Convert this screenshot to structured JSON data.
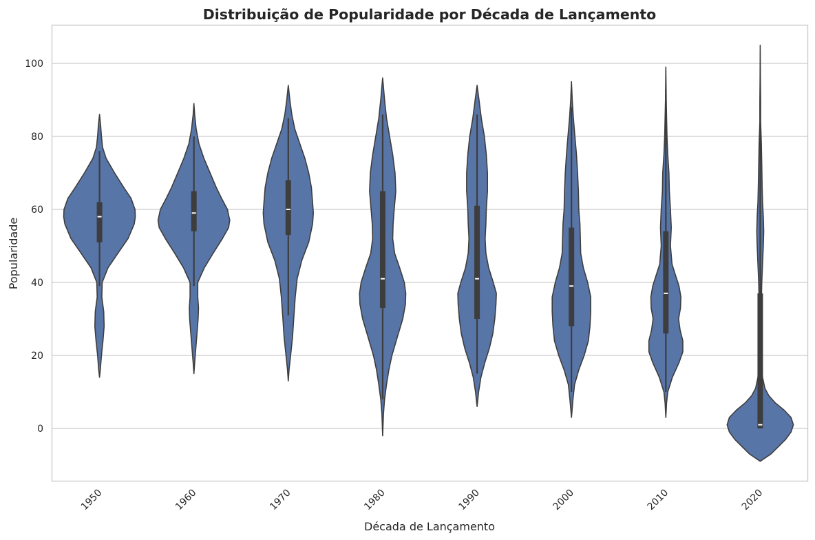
{
  "chart_data": {
    "type": "violin",
    "title": "Distribuição de Popularidade por Década de Lançamento",
    "xlabel": "Década de Lançamento",
    "ylabel": "Popularidade",
    "categories": [
      "1950",
      "1960",
      "1970",
      "1980",
      "1990",
      "2000",
      "2010",
      "2020"
    ],
    "y_ticks": [
      0,
      20,
      40,
      60,
      80,
      100
    ],
    "ylim": [
      -14.2,
      110.5
    ],
    "grid": "horizontal",
    "x_tick_rotation": 45,
    "color": "#5875a8",
    "edge_color": "#3d3d3d",
    "violins": [
      {
        "category": "1950",
        "min": 14,
        "max": 86,
        "whisker_low": 39,
        "whisker_high": 76,
        "q1": 51,
        "median": 58,
        "q3": 62,
        "profile": [
          [
            14,
            0.0
          ],
          [
            16,
            0.02
          ],
          [
            20,
            0.05
          ],
          [
            24,
            0.09
          ],
          [
            28,
            0.12
          ],
          [
            32,
            0.11
          ],
          [
            36,
            0.06
          ],
          [
            40,
            0.07
          ],
          [
            44,
            0.22
          ],
          [
            48,
            0.48
          ],
          [
            52,
            0.74
          ],
          [
            56,
            0.9
          ],
          [
            58,
            0.93
          ],
          [
            60,
            0.92
          ],
          [
            63,
            0.82
          ],
          [
            66,
            0.63
          ],
          [
            70,
            0.39
          ],
          [
            74,
            0.17
          ],
          [
            77,
            0.08
          ],
          [
            80,
            0.05
          ],
          [
            83,
            0.03
          ],
          [
            86,
            0.0
          ]
        ]
      },
      {
        "category": "1960",
        "min": 15,
        "max": 89,
        "whisker_low": 39,
        "whisker_high": 80,
        "q1": 54,
        "median": 59,
        "q3": 65,
        "profile": [
          [
            15,
            0.0
          ],
          [
            18,
            0.02
          ],
          [
            22,
            0.05
          ],
          [
            26,
            0.08
          ],
          [
            30,
            0.11
          ],
          [
            33,
            0.12
          ],
          [
            36,
            0.1
          ],
          [
            40,
            0.1
          ],
          [
            44,
            0.27
          ],
          [
            48,
            0.5
          ],
          [
            52,
            0.74
          ],
          [
            55,
            0.9
          ],
          [
            57,
            0.93
          ],
          [
            60,
            0.87
          ],
          [
            63,
            0.72
          ],
          [
            66,
            0.58
          ],
          [
            70,
            0.42
          ],
          [
            74,
            0.26
          ],
          [
            78,
            0.13
          ],
          [
            82,
            0.06
          ],
          [
            86,
            0.02
          ],
          [
            89,
            0.0
          ]
        ]
      },
      {
        "category": "1970",
        "min": 13,
        "max": 94,
        "whisker_low": 31,
        "whisker_high": 85,
        "q1": 53,
        "median": 60,
        "q3": 68,
        "profile": [
          [
            13,
            0.0
          ],
          [
            16,
            0.02
          ],
          [
            20,
            0.06
          ],
          [
            25,
            0.11
          ],
          [
            30,
            0.14
          ],
          [
            36,
            0.18
          ],
          [
            41,
            0.23
          ],
          [
            46,
            0.35
          ],
          [
            51,
            0.53
          ],
          [
            56,
            0.63
          ],
          [
            59,
            0.65
          ],
          [
            62,
            0.63
          ],
          [
            66,
            0.6
          ],
          [
            70,
            0.53
          ],
          [
            74,
            0.43
          ],
          [
            78,
            0.3
          ],
          [
            82,
            0.17
          ],
          [
            86,
            0.09
          ],
          [
            90,
            0.04
          ],
          [
            94,
            0.0
          ]
        ]
      },
      {
        "category": "1980",
        "min": -2,
        "max": 96,
        "whisker_low": 8,
        "whisker_high": 86,
        "q1": 33,
        "median": 41,
        "q3": 65,
        "profile": [
          [
            -2,
            0.0
          ],
          [
            4,
            0.02
          ],
          [
            8,
            0.05
          ],
          [
            12,
            0.1
          ],
          [
            16,
            0.16
          ],
          [
            20,
            0.24
          ],
          [
            25,
            0.38
          ],
          [
            30,
            0.52
          ],
          [
            34,
            0.59
          ],
          [
            37,
            0.6
          ],
          [
            40,
            0.56
          ],
          [
            44,
            0.44
          ],
          [
            48,
            0.31
          ],
          [
            52,
            0.26
          ],
          [
            56,
            0.27
          ],
          [
            60,
            0.3
          ],
          [
            65,
            0.34
          ],
          [
            70,
            0.32
          ],
          [
            75,
            0.26
          ],
          [
            80,
            0.18
          ],
          [
            85,
            0.1
          ],
          [
            90,
            0.05
          ],
          [
            96,
            0.0
          ]
        ]
      },
      {
        "category": "1990",
        "min": 6,
        "max": 94,
        "whisker_low": 15,
        "whisker_high": 86,
        "q1": 30,
        "median": 41,
        "q3": 61,
        "profile": [
          [
            6,
            0.0
          ],
          [
            10,
            0.04
          ],
          [
            14,
            0.1
          ],
          [
            18,
            0.2
          ],
          [
            22,
            0.32
          ],
          [
            26,
            0.41
          ],
          [
            30,
            0.46
          ],
          [
            34,
            0.49
          ],
          [
            37,
            0.5
          ],
          [
            40,
            0.42
          ],
          [
            44,
            0.3
          ],
          [
            48,
            0.23
          ],
          [
            52,
            0.21
          ],
          [
            56,
            0.23
          ],
          [
            60,
            0.24
          ],
          [
            65,
            0.27
          ],
          [
            70,
            0.27
          ],
          [
            75,
            0.24
          ],
          [
            80,
            0.19
          ],
          [
            85,
            0.11
          ],
          [
            90,
            0.05
          ],
          [
            94,
            0.0
          ]
        ]
      },
      {
        "category": "2000",
        "min": 3,
        "max": 95,
        "whisker_low": 10,
        "whisker_high": 88,
        "q1": 28,
        "median": 39,
        "q3": 55,
        "profile": [
          [
            3,
            0.0
          ],
          [
            8,
            0.04
          ],
          [
            12,
            0.08
          ],
          [
            16,
            0.19
          ],
          [
            20,
            0.33
          ],
          [
            24,
            0.44
          ],
          [
            28,
            0.48
          ],
          [
            32,
            0.5
          ],
          [
            36,
            0.5
          ],
          [
            40,
            0.42
          ],
          [
            44,
            0.31
          ],
          [
            48,
            0.24
          ],
          [
            52,
            0.23
          ],
          [
            56,
            0.22
          ],
          [
            60,
            0.19
          ],
          [
            65,
            0.18
          ],
          [
            70,
            0.16
          ],
          [
            75,
            0.13
          ],
          [
            80,
            0.09
          ],
          [
            85,
            0.05
          ],
          [
            90,
            0.02
          ],
          [
            95,
            0.0
          ]
        ]
      },
      {
        "category": "2010",
        "min": 3,
        "max": 99,
        "whisker_low": 10,
        "whisker_high": 93,
        "q1": 26,
        "median": 37,
        "q3": 54,
        "profile": [
          [
            3,
            0.0
          ],
          [
            7,
            0.02
          ],
          [
            10,
            0.05
          ],
          [
            14,
            0.17
          ],
          [
            18,
            0.34
          ],
          [
            21,
            0.44
          ],
          [
            24,
            0.44
          ],
          [
            27,
            0.37
          ],
          [
            30,
            0.33
          ],
          [
            33,
            0.38
          ],
          [
            36,
            0.39
          ],
          [
            39,
            0.34
          ],
          [
            42,
            0.25
          ],
          [
            45,
            0.16
          ],
          [
            50,
            0.12
          ],
          [
            55,
            0.14
          ],
          [
            60,
            0.12
          ],
          [
            65,
            0.09
          ],
          [
            70,
            0.08
          ],
          [
            75,
            0.05
          ],
          [
            80,
            0.03
          ],
          [
            85,
            0.02
          ],
          [
            90,
            0.01
          ],
          [
            99,
            0.0
          ]
        ]
      },
      {
        "category": "2020",
        "min": -9,
        "max": 105,
        "whisker_low": 0,
        "whisker_high": 89,
        "q1": 0,
        "median": 1,
        "q3": 37,
        "profile": [
          [
            -9,
            0.0
          ],
          [
            -7,
            0.28
          ],
          [
            -5,
            0.47
          ],
          [
            -3,
            0.66
          ],
          [
            -1,
            0.8
          ],
          [
            1,
            0.86
          ],
          [
            3,
            0.8
          ],
          [
            5,
            0.62
          ],
          [
            7,
            0.39
          ],
          [
            9,
            0.22
          ],
          [
            11,
            0.12
          ],
          [
            14,
            0.06
          ],
          [
            18,
            0.04
          ],
          [
            22,
            0.05
          ],
          [
            26,
            0.05
          ],
          [
            30,
            0.03
          ],
          [
            35,
            0.03
          ],
          [
            40,
            0.04
          ],
          [
            45,
            0.06
          ],
          [
            50,
            0.08
          ],
          [
            54,
            0.09
          ],
          [
            58,
            0.08
          ],
          [
            62,
            0.06
          ],
          [
            66,
            0.05
          ],
          [
            72,
            0.04
          ],
          [
            78,
            0.03
          ],
          [
            84,
            0.01
          ],
          [
            90,
            0.01
          ],
          [
            96,
            0.005
          ],
          [
            105,
            0.0
          ]
        ]
      }
    ]
  }
}
